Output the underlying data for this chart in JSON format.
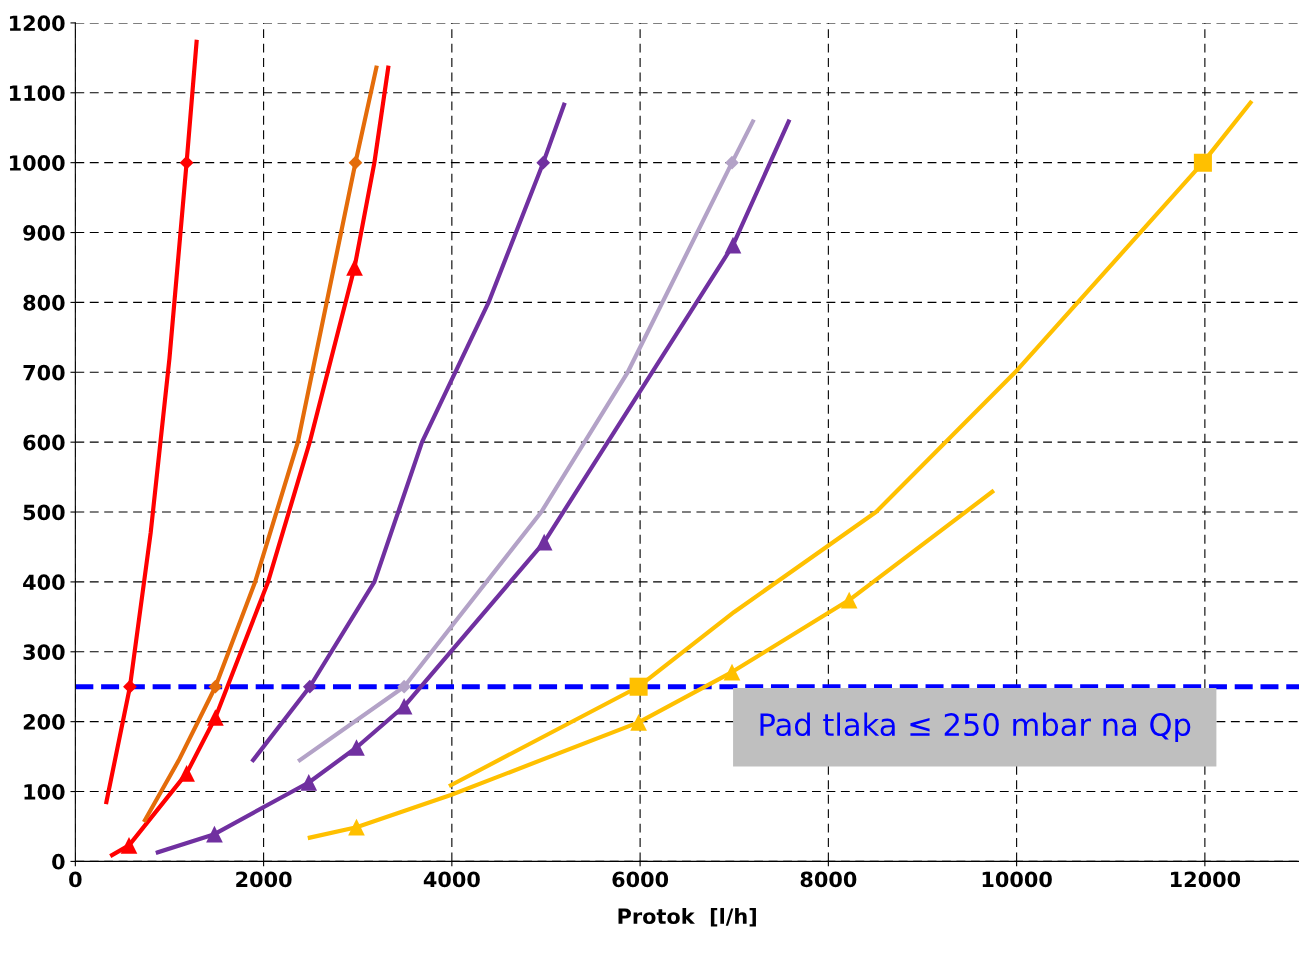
{
  "chart_data": {
    "type": "line",
    "xlabel": "Protok  [l/h]",
    "xlim": [
      0,
      13000
    ],
    "xticks": [
      0,
      2000,
      4000,
      6000,
      8000,
      10000,
      12000
    ],
    "ylim": [
      0,
      1200
    ],
    "yticks": [
      0,
      100,
      200,
      300,
      400,
      500,
      600,
      700,
      800,
      900,
      1000,
      1100,
      1200
    ],
    "grid": true,
    "line_style": "solid",
    "series": [
      {
        "color": "#ff0000",
        "x": [
          330,
          580,
          800,
          1000,
          1182,
          1288
        ],
        "values": [
          85,
          250,
          470,
          720,
          1000,
          1173
        ]
      },
      {
        "type": "scatter",
        "marker": "diamond",
        "color": "#ff0000",
        "x": [
          580,
          1182
        ],
        "values": [
          250,
          1000
        ]
      },
      {
        "color": "#ff0000",
        "x": [
          390,
          570,
          1182,
          1488,
          2047,
          2490,
          2966,
          3177,
          3324
        ],
        "values": [
          9,
          23,
          126,
          206,
          400,
          600,
          850,
          1000,
          1136
        ]
      },
      {
        "type": "scatter",
        "marker": "triangle",
        "color": "#ff0000",
        "x": [
          570,
          1182,
          1488,
          2966
        ],
        "values": [
          23,
          126,
          206,
          850
        ]
      },
      {
        "color": "#e46c0a",
        "x": [
          739,
          1100,
          1488,
          1910,
          2364,
          2976,
          3198
        ],
        "values": [
          59,
          145,
          250,
          400,
          600,
          1000,
          1136
        ]
      },
      {
        "type": "scatter",
        "marker": "diamond",
        "color": "#e46c0a",
        "x": [
          1488,
          2976
        ],
        "values": [
          250,
          1000
        ]
      },
      {
        "color": "#7030a0",
        "x": [
          1889,
          2491,
          3177,
          3683,
          4390,
          4971,
          5192
        ],
        "values": [
          145,
          250,
          400,
          600,
          800,
          1000,
          1083
        ]
      },
      {
        "type": "scatter",
        "marker": "diamond",
        "color": "#7030a0",
        "x": [
          2491,
          4971
        ],
        "values": [
          250,
          1000
        ]
      },
      {
        "color": "#b3a2c7",
        "x": [
          2385,
          3493,
          4950,
          5868,
          6976,
          7198
        ],
        "values": [
          145,
          250,
          500,
          700,
          1000,
          1059
        ]
      },
      {
        "type": "scatter",
        "marker": "diamond",
        "color": "#b3a2c7",
        "x": [
          3493,
          6976
        ],
        "values": [
          250,
          1000
        ]
      },
      {
        "color": "#7030a0",
        "x": [
          876,
          1478,
          2480,
          2987,
          3493,
          4981,
          6987,
          7578
        ],
        "values": [
          13,
          39,
          113,
          163,
          222,
          457,
          882,
          1059
        ]
      },
      {
        "type": "scatter",
        "marker": "triangle",
        "color": "#7030a0",
        "x": [
          1478,
          2480,
          2987,
          3493,
          4981,
          6987
        ],
        "values": [
          39,
          113,
          163,
          222,
          457,
          882
        ]
      },
      {
        "color": "#ffc000",
        "x": [
          3989,
          5984,
          7000,
          8506,
          9984,
          11979,
          12485
        ],
        "values": [
          109,
          250,
          357,
          500,
          700,
          1000,
          1086
        ]
      },
      {
        "type": "scatter",
        "marker": "square",
        "color": "#ffc000",
        "x": [
          5984,
          11979
        ],
        "values": [
          250,
          1000
        ]
      },
      {
        "color": "#ffc000",
        "x": [
          2491,
          2987,
          3989,
          5984,
          6976,
          8221,
          9741
        ],
        "values": [
          34,
          49,
          95,
          199,
          271,
          374,
          529
        ]
      },
      {
        "type": "scatter",
        "marker": "triangle",
        "color": "#ffc000",
        "x": [
          2987,
          5984,
          6976,
          8221
        ],
        "values": [
          49,
          199,
          271,
          374
        ]
      }
    ],
    "ref_lines": [
      {
        "axis": "y",
        "value": 250,
        "color": "#0000ff",
        "line_style": "dashed"
      }
    ],
    "annotations": [
      "Pad tlaka ≤ 250 mbar na Qp"
    ]
  }
}
